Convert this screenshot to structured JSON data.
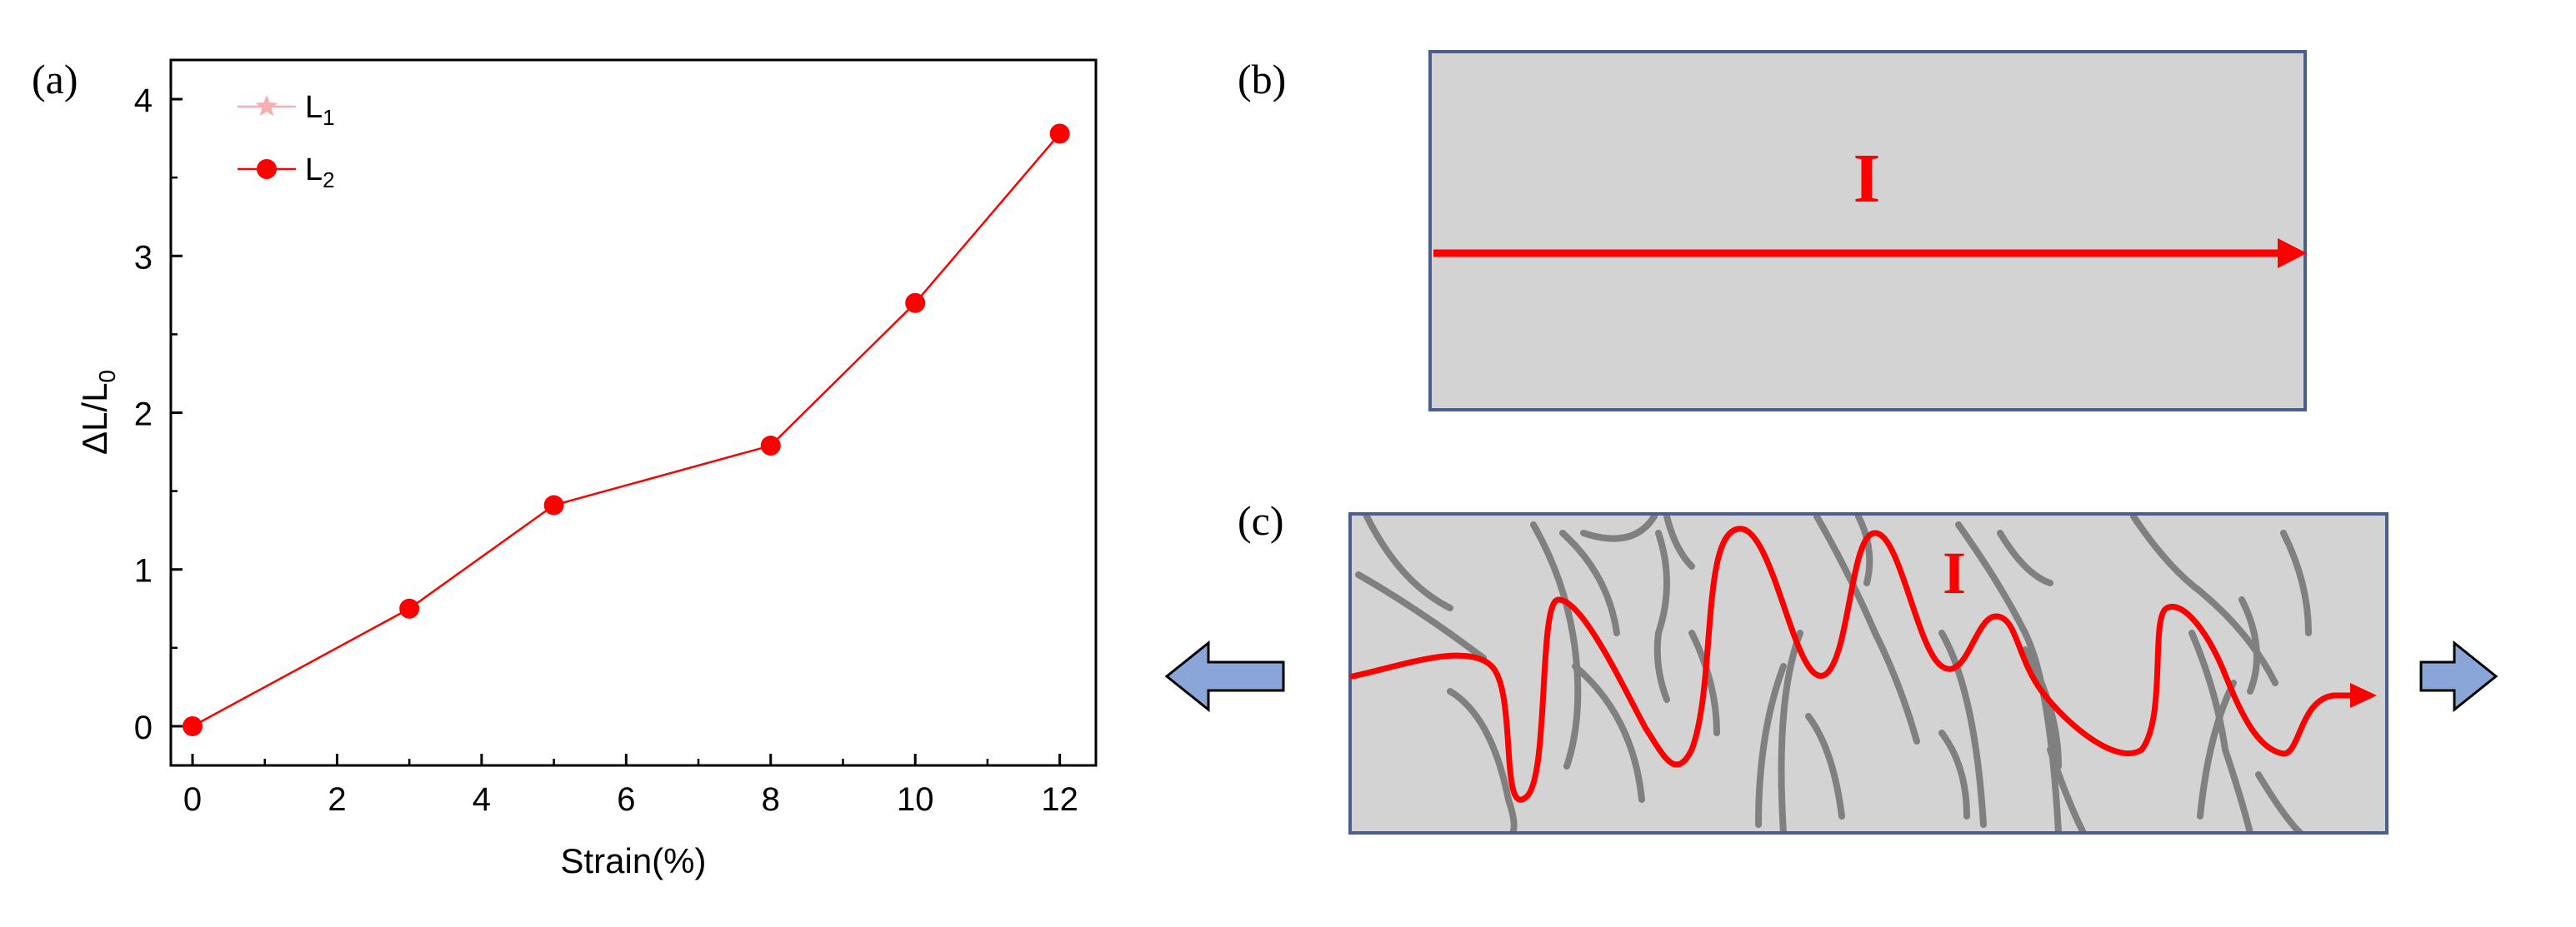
{
  "panels": {
    "a": {
      "label": "(a)"
    },
    "b": {
      "label": "(b)",
      "current_label": "I"
    },
    "c": {
      "label": "(c)",
      "current_label": "I"
    }
  },
  "colors": {
    "series": "#ff0000",
    "series_L1": "#f7aeb0",
    "specimen_fill": "#d3d3d3",
    "specimen_border": "#4a5f8c",
    "crack": "#808080",
    "arrow_fill": "#8aa6d9"
  },
  "icons": {
    "left": "left-arrow-icon",
    "right": "right-arrow-icon"
  },
  "chart_data": {
    "type": "line",
    "xlabel": "Strain(%)",
    "ylabel": "ΔL/L",
    "ylabel_subscript": "0",
    "xlim": [
      -0.3,
      12.5
    ],
    "ylim": [
      -0.25,
      4.25
    ],
    "xticks": [
      0,
      2,
      4,
      6,
      8,
      10,
      12
    ],
    "yticks": [
      0,
      1,
      2,
      3,
      4
    ],
    "legend_position": "top-left",
    "series": [
      {
        "name": "L",
        "name_subscript": "1",
        "marker": "star",
        "x": [],
        "y": []
      },
      {
        "name": "L",
        "name_subscript": "2",
        "marker": "circle",
        "x": [
          0,
          3,
          5,
          8,
          10,
          12
        ],
        "y": [
          0,
          0.75,
          1.41,
          1.79,
          2.7,
          3.78
        ]
      }
    ]
  }
}
